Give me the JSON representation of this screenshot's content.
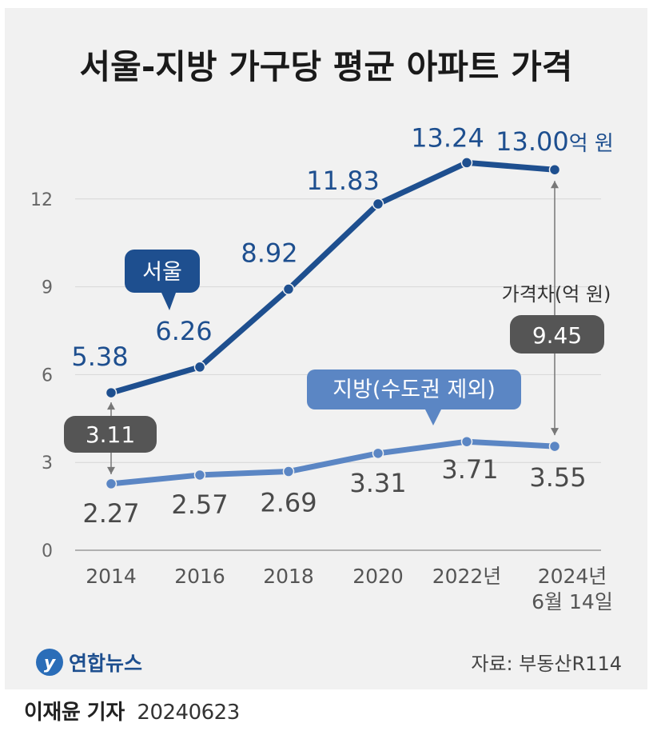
{
  "title": "서울-지방 가구당 평균 아파트 가격",
  "unit_label": "억 원",
  "y_ticks": [
    "0",
    "3",
    "6",
    "9",
    "12"
  ],
  "seoul_badge": "서울",
  "region_badge": "지방(수도권 제외)",
  "gap_label": "가격차(억 원)",
  "gap_start": "3.11",
  "gap_end": "9.45",
  "logo_text": "연합뉴스",
  "source": "자료: 부동산R114",
  "byline_name": "이재윤 기자",
  "byline_date": "20240623",
  "colors": {
    "seoul": "#1e4f8f",
    "region": "#5b86c4",
    "region_label": "#4a4a4a",
    "gap_badge": "#555555",
    "background": "#f1f1f1"
  },
  "chart_data": {
    "type": "line",
    "title": "서울-지방 가구당 평균 아파트 가격",
    "categories": [
      "2014",
      "2016",
      "2018",
      "2020",
      "2022년",
      "2024년 6월 14일"
    ],
    "ylim": [
      0,
      13.5
    ],
    "y_ticks": [
      0,
      3,
      6,
      9,
      12
    ],
    "grid": true,
    "series": [
      {
        "name": "서울",
        "values": [
          5.38,
          6.26,
          8.92,
          11.83,
          13.24,
          13.0
        ],
        "labels": [
          "5.38",
          "6.26",
          "8.92",
          "11.83",
          "13.24",
          "13.00억 원"
        ]
      },
      {
        "name": "지방(수도권 제외)",
        "values": [
          2.27,
          2.57,
          2.69,
          3.31,
          3.71,
          3.55
        ],
        "labels": [
          "2.27",
          "2.57",
          "2.69",
          "3.31",
          "3.71",
          "3.55"
        ]
      }
    ],
    "annotations": [
      {
        "label": "3.11",
        "year": "2014"
      },
      {
        "label": "가격차(억 원) 9.45",
        "year": "2024년 6월 14일"
      }
    ]
  }
}
